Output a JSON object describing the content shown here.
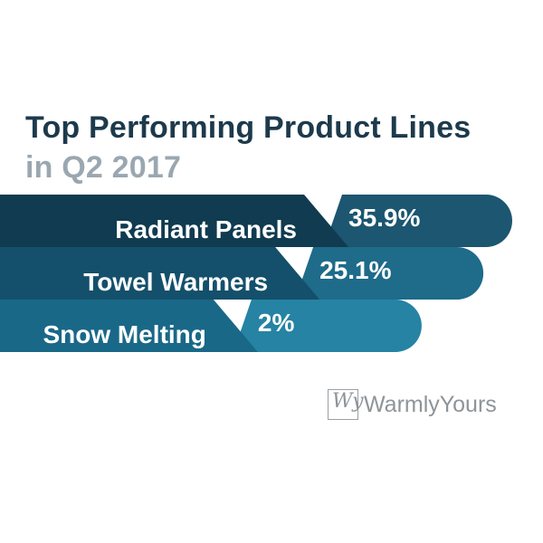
{
  "title": {
    "line1": "Top Performing Product Lines",
    "line2": "in Q2 2017"
  },
  "chart_data": {
    "type": "bar",
    "orientation": "horizontal",
    "categories": [
      "Radiant Panels",
      "Towel Warmers",
      "Snow Melting"
    ],
    "values": [
      35.9,
      25.1,
      2
    ],
    "value_labels": [
      "35.9%",
      "25.1%",
      "2%"
    ],
    "title": "Top Performing Product Lines in Q2 2017",
    "colors": {
      "band_dark": [
        "#103b50",
        "#14506b",
        "#196888"
      ],
      "band_light": [
        "#1c5670",
        "#1e6b8a",
        "#2683a3"
      ]
    }
  },
  "logo": {
    "mark": "Wy",
    "text": "WarmlyYours"
  }
}
